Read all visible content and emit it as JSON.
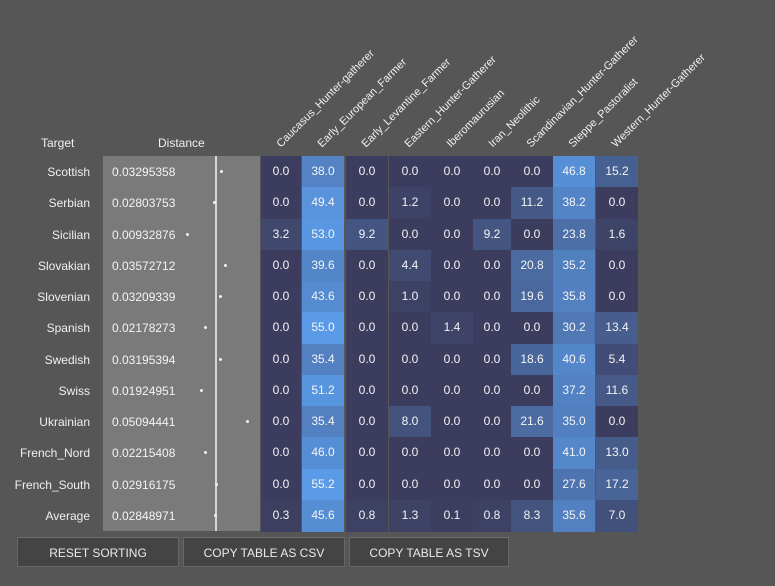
{
  "header": {
    "target": "Target",
    "distance": "Distance"
  },
  "columns": [
    "Caucasus_Hunter-gatherer",
    "Early_European_Farmer",
    "Early_Levantine_Farmer",
    "Eastern_Hunter-Gatherer",
    "Iberomaurusian",
    "Iran_Neolithic",
    "Scandinavian_Hunter-Gatherer",
    "Steppe_Pastoralist",
    "Western_Hunter-Gatherer"
  ],
  "rows": [
    {
      "target": "Scottish",
      "distance": "0.03295358",
      "values": [
        "0.0",
        "38.0",
        "0.0",
        "0.0",
        "0.0",
        "0.0",
        "0.0",
        "46.8",
        "15.2"
      ]
    },
    {
      "target": "Serbian",
      "distance": "0.02803753",
      "values": [
        "0.0",
        "49.4",
        "0.0",
        "1.2",
        "0.0",
        "0.0",
        "11.2",
        "38.2",
        "0.0"
      ]
    },
    {
      "target": "Sicilian",
      "distance": "0.00932876",
      "values": [
        "3.2",
        "53.0",
        "9.2",
        "0.0",
        "0.0",
        "9.2",
        "0.0",
        "23.8",
        "1.6"
      ]
    },
    {
      "target": "Slovakian",
      "distance": "0.03572712",
      "values": [
        "0.0",
        "39.6",
        "0.0",
        "4.4",
        "0.0",
        "0.0",
        "20.8",
        "35.2",
        "0.0"
      ]
    },
    {
      "target": "Slovenian",
      "distance": "0.03209339",
      "values": [
        "0.0",
        "43.6",
        "0.0",
        "1.0",
        "0.0",
        "0.0",
        "19.6",
        "35.8",
        "0.0"
      ]
    },
    {
      "target": "Spanish",
      "distance": "0.02178273",
      "values": [
        "0.0",
        "55.0",
        "0.0",
        "0.0",
        "1.4",
        "0.0",
        "0.0",
        "30.2",
        "13.4"
      ]
    },
    {
      "target": "Swedish",
      "distance": "0.03195394",
      "values": [
        "0.0",
        "35.4",
        "0.0",
        "0.0",
        "0.0",
        "0.0",
        "18.6",
        "40.6",
        "5.4"
      ]
    },
    {
      "target": "Swiss",
      "distance": "0.01924951",
      "values": [
        "0.0",
        "51.2",
        "0.0",
        "0.0",
        "0.0",
        "0.0",
        "0.0",
        "37.2",
        "11.6"
      ]
    },
    {
      "target": "Ukrainian",
      "distance": "0.05094441",
      "values": [
        "0.0",
        "35.4",
        "0.0",
        "8.0",
        "0.0",
        "0.0",
        "21.6",
        "35.0",
        "0.0"
      ]
    },
    {
      "target": "French_Nord",
      "distance": "0.02215408",
      "values": [
        "0.0",
        "46.0",
        "0.0",
        "0.0",
        "0.0",
        "0.0",
        "0.0",
        "41.0",
        "13.0"
      ]
    },
    {
      "target": "French_South",
      "distance": "0.02916175",
      "values": [
        "0.0",
        "55.2",
        "0.0",
        "0.0",
        "0.0",
        "0.0",
        "0.0",
        "27.6",
        "17.2"
      ]
    },
    {
      "target": "Average",
      "distance": "0.02848971",
      "values": [
        "0.3",
        "45.6",
        "0.8",
        "1.3",
        "0.1",
        "0.8",
        "8.3",
        "35.6",
        "7.0"
      ]
    }
  ],
  "buttons": {
    "reset": "RESET SORTING",
    "csv": "COPY TABLE AS CSV",
    "tsv": "COPY TABLE AS TSV"
  },
  "colors": {
    "background": "#565656",
    "cell_zero": "#3c3d5e",
    "cell_high": "#5a9ae6",
    "distance_panel": "#7a7a7a"
  }
}
